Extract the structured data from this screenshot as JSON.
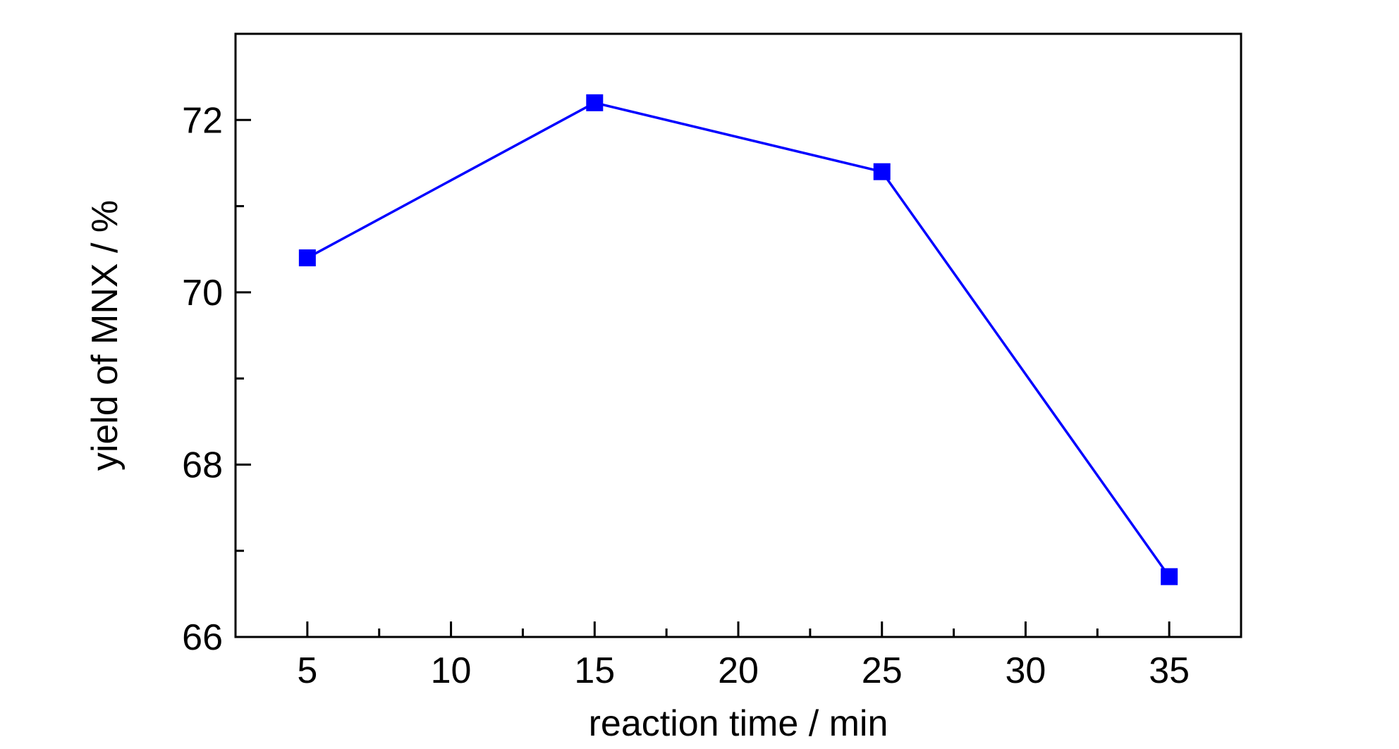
{
  "chart_data": {
    "type": "line",
    "title": "",
    "xlabel": "reaction time / min",
    "ylabel": "yield of MNX / %",
    "xlim": [
      2.5,
      37.5
    ],
    "ylim": [
      66,
      73
    ],
    "x_ticks": [
      5,
      10,
      15,
      20,
      25,
      30,
      35
    ],
    "y_ticks": [
      66,
      68,
      70,
      72
    ],
    "grid": false,
    "legend": "none",
    "series": [
      {
        "color": "#0000ff",
        "marker": "square",
        "x": [
          5,
          15,
          25,
          35
        ],
        "y": [
          70.4,
          72.2,
          71.4,
          66.7
        ]
      }
    ]
  }
}
